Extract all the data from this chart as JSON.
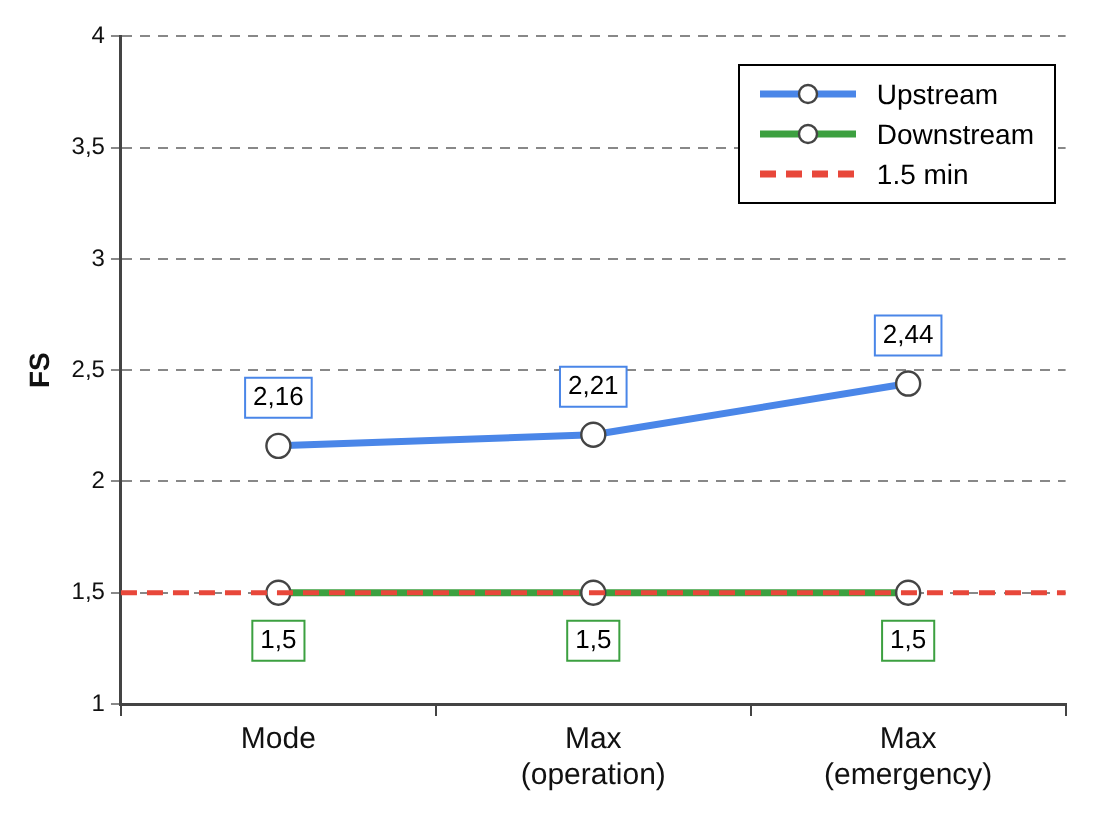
{
  "chart_data": {
    "type": "line",
    "ylabel": "FS",
    "categories": [
      "Mode",
      "Max\n(operation)",
      "Max\n(emergency)"
    ],
    "series": [
      {
        "name": "Upstream",
        "color": "#4a86e8",
        "values": [
          2.16,
          2.21,
          2.44
        ],
        "value_labels": [
          "2,16",
          "2,21",
          "2,44"
        ]
      },
      {
        "name": "Downstream",
        "color": "#3ca040",
        "values": [
          1.5,
          1.5,
          1.5
        ],
        "value_labels": [
          "1,5",
          "1,5",
          "1,5"
        ]
      }
    ],
    "ref_lines": [
      {
        "axis": "y",
        "value": 1.5,
        "label": "1.5 min",
        "color": "#e8473a",
        "line_style": "dashed"
      }
    ],
    "ylim": [
      1,
      4
    ],
    "yticks": [
      {
        "value": 1,
        "label": "1"
      },
      {
        "value": 1.5,
        "label": "1,5"
      },
      {
        "value": 2,
        "label": "2"
      },
      {
        "value": 2.5,
        "label": "2,5"
      },
      {
        "value": 3,
        "label": "3"
      },
      {
        "value": 3.5,
        "label": "3,5"
      },
      {
        "value": 4,
        "label": "4"
      }
    ],
    "grid": "y",
    "legend": "top right",
    "marker": "circle",
    "line_style": "solid"
  }
}
